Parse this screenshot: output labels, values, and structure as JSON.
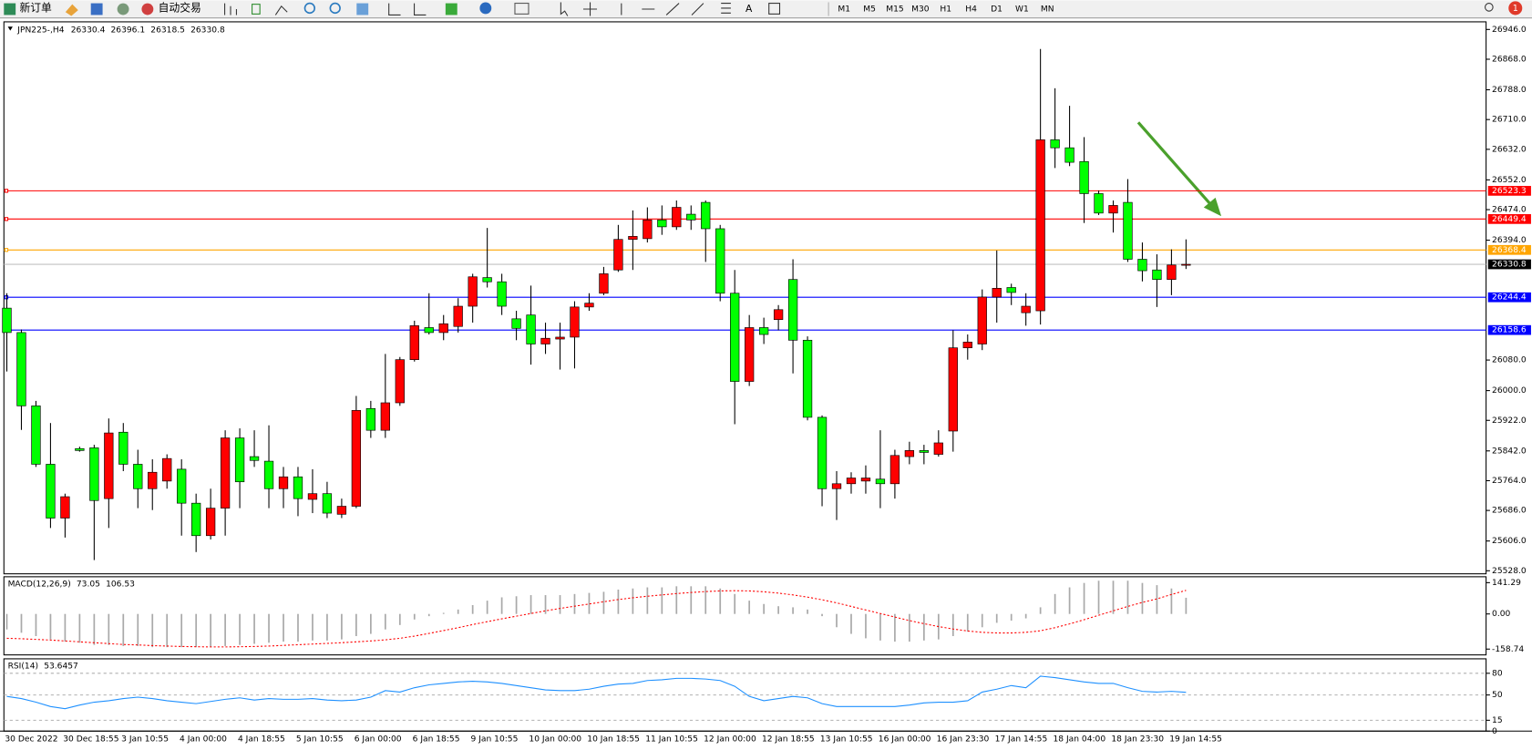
{
  "toolbar": {
    "new_order": "新订单",
    "auto_trading": "自动交易",
    "timeframes": [
      "M1",
      "M5",
      "M15",
      "M30",
      "H1",
      "H4",
      "D1",
      "W1",
      "MN"
    ],
    "badge": "1"
  },
  "chart_data": [
    {
      "type": "candlestick",
      "symbol": "JPN225-,H4",
      "categories": [
        "30 Dec 2022",
        null,
        null,
        null,
        "30 Dec 18:55",
        null,
        null,
        null,
        "3 Jan 10:55",
        null,
        null,
        null,
        "4 Jan 00:00",
        null,
        null,
        null,
        "4 Jan 18:55",
        null,
        null,
        null,
        "5 Jan 10:55",
        null,
        null,
        null,
        "6 Jan 00:00",
        null,
        null,
        null,
        "6 Jan 18:55",
        null,
        null,
        null,
        "9 Jan 10:55",
        null,
        null,
        null,
        "10 Jan 00:00",
        null,
        null,
        null,
        "10 Jan 18:55",
        null,
        null,
        null,
        "11 Jan 10:55",
        null,
        null,
        null,
        "12 Jan 00:00",
        null,
        null,
        null,
        "12 Jan 18:55",
        null,
        null,
        null,
        "13 Jan 10:55",
        null,
        null,
        null,
        "16 Jan 00:00",
        null,
        null,
        null,
        "16 Jan 23:30",
        null,
        null,
        null,
        "17 Jan 14:55",
        null,
        null,
        null,
        "18 Jan 04:00",
        null,
        null,
        null,
        "18 Jan 23:30",
        null,
        null,
        null,
        "19 Jan 14:55",
        null
      ],
      "open": [
        26216,
        26152,
        25960,
        25807,
        25666,
        25848,
        25850,
        25717,
        25891,
        25807,
        25743,
        25763,
        25794,
        25705,
        25620,
        25692,
        25876,
        25827,
        25815,
        25743,
        25774,
        25715,
        25730,
        25676,
        25697,
        25953,
        25896,
        25968,
        26081,
        26165,
        26152,
        26168,
        26221,
        26296,
        26285,
        26188,
        26198,
        26122,
        26135,
        26140,
        26219,
        26255,
        26316,
        26396,
        26398,
        26447,
        26429,
        26462,
        26493,
        26424,
        26255,
        26024,
        26165,
        26186,
        26291,
        26132,
        25930,
        25743,
        25756,
        25763,
        25768,
        25756,
        25827,
        25843,
        25833,
        25894,
        26112,
        26122,
        26245,
        26270,
        26204,
        26209,
        26657,
        26636,
        26600,
        26516,
        26465,
        26493,
        26344,
        26316,
        26291,
        26330.4
      ],
      "high": [
        26255,
        26160,
        25973,
        25915,
        25730,
        25853,
        25858,
        25927,
        25915,
        25845,
        25820,
        25833,
        25820,
        25730,
        25743,
        25896,
        25901,
        25896,
        25909,
        25800,
        25800,
        25794,
        25761,
        25717,
        25986,
        25973,
        26096,
        26088,
        26183,
        26255,
        26198,
        26242,
        26306,
        26426,
        26306,
        26209,
        26275,
        26178,
        26178,
        26234,
        26255,
        26324,
        26434,
        26472,
        26480,
        26485,
        26498,
        26485,
        26498,
        26434,
        26316,
        26198,
        26191,
        26224,
        26344,
        26142,
        25935,
        25789,
        25786,
        25804,
        25896,
        25845,
        25866,
        25858,
        25896,
        26158,
        26147,
        26265,
        26367,
        26280,
        26255,
        26895,
        26792,
        26746,
        26664,
        26524,
        26498,
        26554,
        26388,
        26357,
        26370,
        26396.1
      ],
      "low": [
        26050,
        25897,
        25800,
        25640,
        25615,
        25840,
        25556,
        25640,
        25789,
        25692,
        25687,
        25743,
        25620,
        25577,
        25610,
        25620,
        25692,
        25800,
        25692,
        25692,
        25671,
        25679,
        25666,
        25666,
        25692,
        25876,
        25876,
        25960,
        26076,
        26147,
        26132,
        26152,
        26178,
        26270,
        26198,
        26132,
        26068,
        26096,
        26055,
        26058,
        26209,
        26250,
        26311,
        26316,
        26388,
        26408,
        26421,
        26421,
        26337,
        26234,
        25912,
        26012,
        26122,
        26158,
        26045,
        25922,
        25697,
        25661,
        25730,
        25730,
        25692,
        25717,
        25807,
        25807,
        25827,
        25840,
        26081,
        26106,
        26178,
        26224,
        26170,
        26173,
        26583,
        26588,
        26439,
        26460,
        26414,
        26337,
        26286,
        26219,
        26250,
        26318.5
      ],
      "close": [
        26152,
        25960,
        25807,
        25666,
        25722,
        25843,
        25712,
        25889,
        25807,
        25743,
        25786,
        25822,
        25705,
        25620,
        25692,
        25876,
        25761,
        25817,
        25743,
        25774,
        25717,
        25730,
        25679,
        25697,
        25948,
        25896,
        25968,
        26081,
        26170,
        26152,
        26175,
        26221,
        26298,
        26285,
        26221,
        26163,
        26122,
        26137,
        26140,
        26219,
        26229,
        26306,
        26396,
        26404,
        26447,
        26429,
        26480,
        26447,
        26424,
        26255,
        26024,
        26165,
        26147,
        26212,
        26132,
        25930,
        25743,
        25756,
        25771,
        25771,
        25756,
        25830,
        25843,
        25838,
        25863,
        26112,
        26127,
        26245,
        26268,
        26257,
        26221,
        26657,
        26636,
        26598,
        26516,
        26465,
        26485,
        26344,
        26314,
        26291,
        26329,
        26330.8
      ],
      "up_color": "#ff0000",
      "down_color": "#00ff00",
      "ylim": [
        25520,
        26966
      ],
      "yticks": [
        {
          "value": 25528,
          "label": "25528.0"
        },
        {
          "value": 25606,
          "label": "25606.0"
        },
        {
          "value": 25686,
          "label": "25686.0"
        },
        {
          "value": 25764,
          "label": "25764.0"
        },
        {
          "value": 25842,
          "label": "25842.0"
        },
        {
          "value": 25922,
          "label": "25922.0"
        },
        {
          "value": 26000,
          "label": "26000.0"
        },
        {
          "value": 26080,
          "label": "26080.0"
        },
        {
          "value": 26394,
          "label": "26394.0"
        },
        {
          "value": 26474,
          "label": "26474.0"
        },
        {
          "value": 26552,
          "label": "26552.0"
        },
        {
          "value": 26632,
          "label": "26632.0"
        },
        {
          "value": 26710,
          "label": "26710.0"
        },
        {
          "value": 26788,
          "label": "26788.0"
        },
        {
          "value": 26868,
          "label": "26868.0"
        },
        {
          "value": 26946,
          "label": "26946.0"
        }
      ],
      "levels": [
        {
          "value": 26523.3,
          "color": "#ff0000"
        },
        {
          "value": 26449.4,
          "color": "#ff0000"
        },
        {
          "value": 26368.4,
          "color": "#ffa500"
        },
        {
          "value": 26244.4,
          "color": "#0000ff"
        },
        {
          "value": 26158.6,
          "color": "#0000ff"
        }
      ],
      "price_line_color": "#c0c0c0"
    },
    {
      "type": "macd",
      "title": "MACD(12,26,9)",
      "histogram": {
        "color": "#a9a9a9",
        "values": [
          -70,
          -85,
          -100,
          -115,
          -125,
          -130,
          -140,
          -140,
          -145,
          -145,
          -150,
          -150,
          -150,
          -150,
          -150,
          -145,
          -140,
          -135,
          -130,
          -125,
          -125,
          -120,
          -120,
          -115,
          -100,
          -90,
          -70,
          -50,
          -25,
          -10,
          5,
          20,
          40,
          60,
          75,
          80,
          85,
          85,
          85,
          90,
          95,
          100,
          110,
          115,
          120,
          120,
          125,
          125,
          125,
          115,
          90,
          60,
          45,
          35,
          30,
          20,
          -10,
          -60,
          -90,
          -110,
          -120,
          -125,
          -125,
          -120,
          -115,
          -100,
          -80,
          -60,
          -40,
          -30,
          -20,
          30,
          90,
          120,
          140,
          150,
          150,
          150,
          140,
          130,
          115,
          73.05
        ]
      },
      "signal": {
        "color": "#ff0000",
        "values": [
          -110,
          -112,
          -115,
          -118,
          -122,
          -126,
          -130,
          -134,
          -138,
          -140,
          -143,
          -145,
          -147,
          -148,
          -149,
          -149,
          -148,
          -147,
          -145,
          -142,
          -139,
          -136,
          -133,
          -130,
          -126,
          -122,
          -117,
          -110,
          -100,
          -88,
          -75,
          -62,
          -48,
          -35,
          -22,
          -10,
          2,
          14,
          25,
          35,
          45,
          55,
          65,
          73,
          80,
          86,
          92,
          97,
          101,
          104,
          105,
          104,
          100,
          94,
          86,
          76,
          64,
          50,
          34,
          18,
          2,
          -14,
          -30,
          -44,
          -57,
          -68,
          -77,
          -83,
          -86,
          -86,
          -83,
          -76,
          -62,
          -45,
          -26,
          -6,
          14,
          34,
          52,
          68,
          88,
          106.53
        ]
      },
      "ylim": [
        -185,
        168
      ],
      "yticks": [
        -158.74,
        {
          "value": 0,
          "label": "0.00"
        },
        141.29
      ]
    },
    {
      "type": "rsi",
      "title": "RSI(14)",
      "color": "#1e90ff",
      "values": [
        48,
        45,
        40,
        34,
        31,
        36,
        40,
        42,
        45,
        47,
        45,
        42,
        40,
        38,
        41,
        44,
        46,
        43,
        45,
        44,
        44,
        45,
        43,
        42,
        43,
        47,
        56,
        54,
        60,
        64,
        66,
        68,
        69,
        68,
        66,
        63,
        60,
        57,
        56,
        56,
        58,
        62,
        65,
        66,
        70,
        71,
        73,
        73,
        72,
        70,
        62,
        48,
        42,
        45,
        48,
        46,
        38,
        34,
        34,
        34,
        34,
        34,
        36,
        39,
        40,
        40,
        42,
        54,
        58,
        63,
        60,
        76,
        74,
        71,
        68,
        66,
        66,
        60,
        55,
        54,
        55,
        53.6457
      ],
      "ylim": [
        0,
        100
      ],
      "yticks": [
        0,
        15,
        50,
        80
      ]
    }
  ]
}
